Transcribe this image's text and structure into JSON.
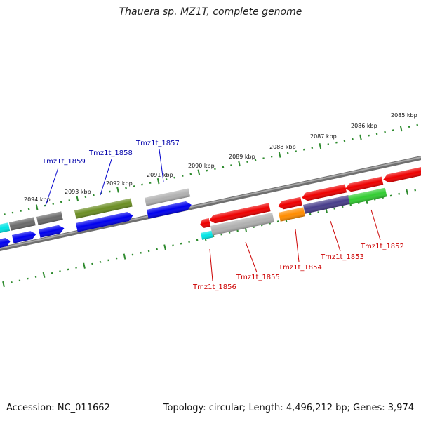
{
  "title": "Thauera sp. MZ1T, complete genome",
  "footer": {
    "accession_label": "Accession:",
    "accession": "NC_011662",
    "topology_label": "Topology:",
    "topology": "circular",
    "length_label": "Length:",
    "length": "4,496,212 bp",
    "genes_label": "Genes:",
    "genes": "3,974"
  },
  "colors": {
    "ruler": "#2e8b2e",
    "backbone": "#808080",
    "label_top_strand": "#0000aa",
    "label_bottom_strand": "#cc0000"
  },
  "ruler": {
    "tick_labels": [
      "2085 kbp",
      "2086 kbp",
      "2087 kbp",
      "2088 kbp",
      "2089 kbp",
      "2090 kbp",
      "2091 kbp",
      "2092 kbp",
      "2093 kbp",
      "2094 kbp"
    ]
  },
  "top_strand_labels": [
    "Tmz1t_1857",
    "Tmz1t_1858",
    "Tmz1t_1859"
  ],
  "bottom_strand_labels": [
    "Tmz1t_1852",
    "Tmz1t_1853",
    "Tmz1t_1854",
    "Tmz1t_1855",
    "Tmz1t_1856"
  ],
  "features": [
    {
      "id": "top-outer-1",
      "color": "#00e5e5"
    },
    {
      "id": "top-outer-2",
      "color": "#6a6a6a"
    },
    {
      "id": "top-outer-3",
      "color": "#6a6a6a"
    },
    {
      "id": "top-outer-1858",
      "color": "#6b8e23"
    },
    {
      "id": "top-outer-1857",
      "color": "#b0b0b0"
    },
    {
      "id": "top-inner-1",
      "color": "#0000ee"
    },
    {
      "id": "top-inner-2",
      "color": "#0000ee"
    },
    {
      "id": "top-inner-3",
      "color": "#0000ee"
    },
    {
      "id": "top-inner-1858",
      "color": "#0000ee"
    },
    {
      "id": "top-inner-1857",
      "color": "#0000ee"
    },
    {
      "id": "bottom-red-1",
      "color": "#ee0000"
    },
    {
      "id": "bottom-red-2",
      "color": "#ee0000"
    },
    {
      "id": "bottom-red-3",
      "color": "#ee0000"
    },
    {
      "id": "bottom-red-4",
      "color": "#ee0000"
    },
    {
      "id": "bottom-red-5",
      "color": "#ee0000"
    },
    {
      "id": "bottom-red-6",
      "color": "#ee0000"
    },
    {
      "id": "bottom-1856",
      "color": "#00e5e5"
    },
    {
      "id": "bottom-1855",
      "color": "#b0b0b0"
    },
    {
      "id": "bottom-1854",
      "color": "#ff8c00"
    },
    {
      "id": "bottom-1853",
      "color": "#483d8b"
    },
    {
      "id": "bottom-1852",
      "color": "#32cd32"
    }
  ]
}
